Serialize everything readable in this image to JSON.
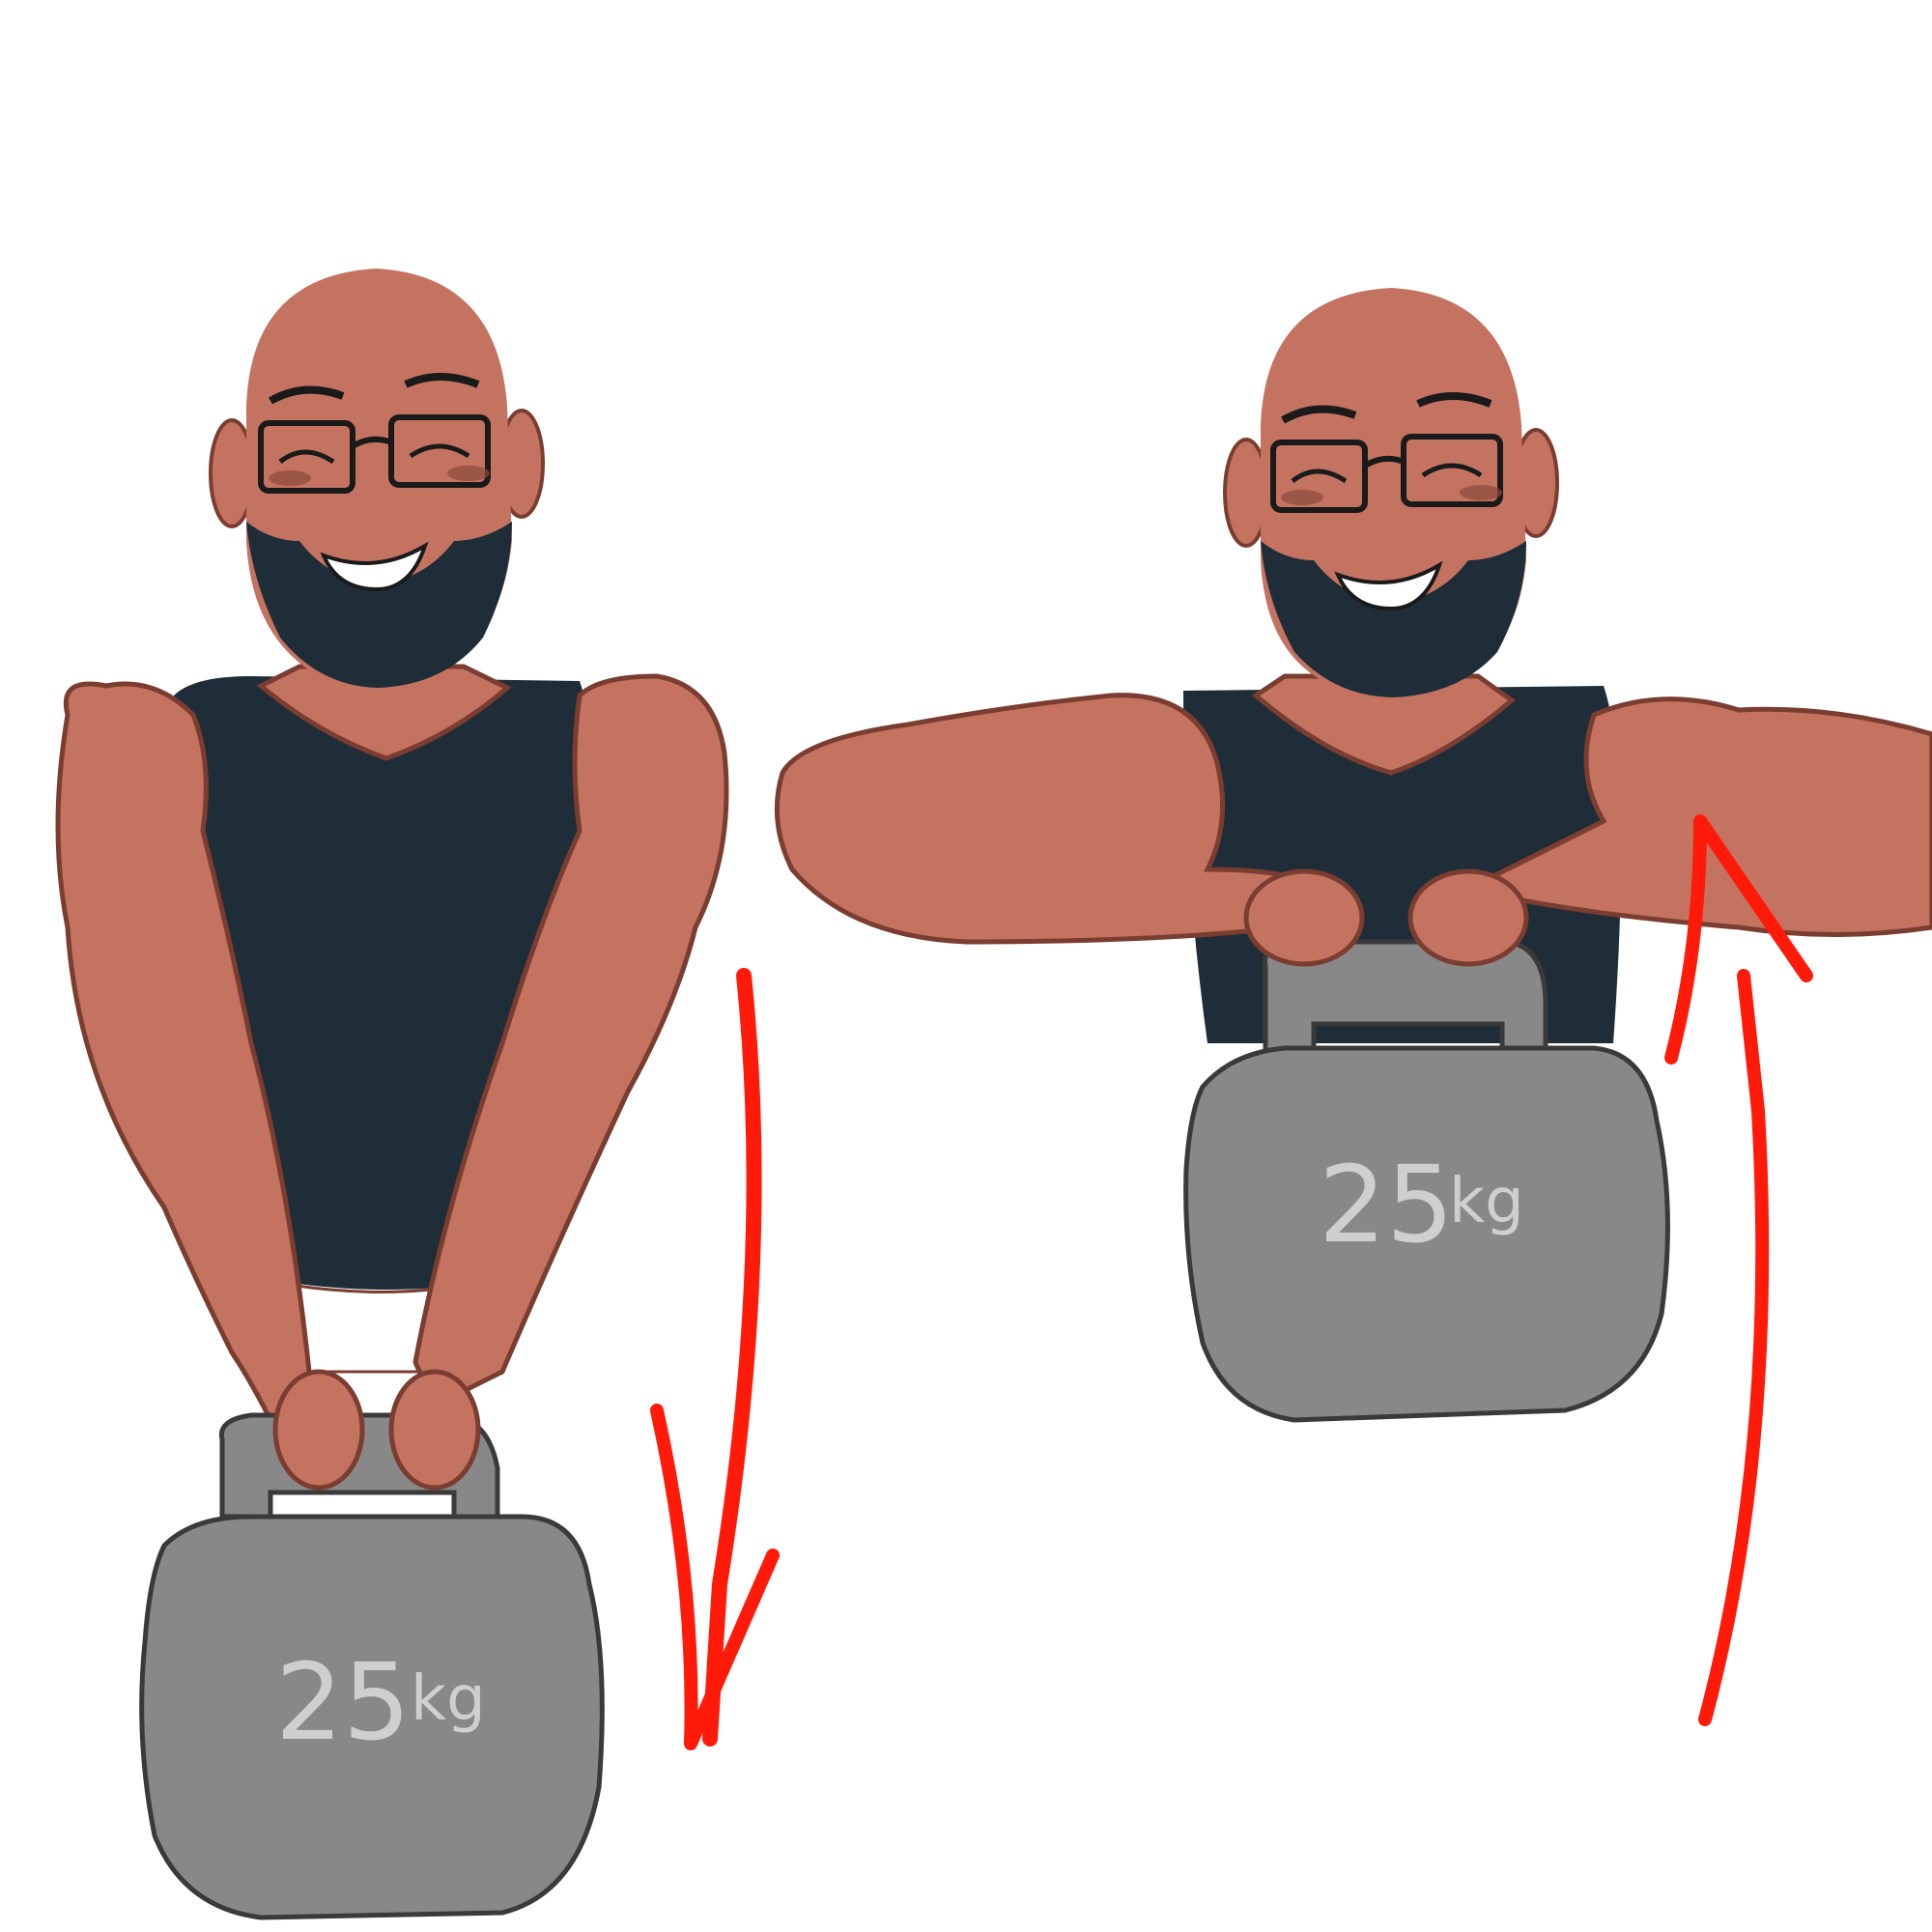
{
  "colors": {
    "background": "#ffffff",
    "skin": "#c47360",
    "skin_outline": "#7a3d30",
    "beard_shirt": "#1f2d38",
    "kettlebell": "#888888",
    "kettlebell_outline": "#3a3a3a",
    "label": "#cfcfcf",
    "arrow": "#ff1a0a"
  },
  "figures": [
    {
      "pose": "arms-down",
      "kettlebell": {
        "weight": "25",
        "unit": "kg"
      },
      "arrow": "down-arrow-icon"
    },
    {
      "pose": "arms-up",
      "kettlebell": {
        "weight": "25",
        "unit": "kg"
      },
      "arrow": "up-arrow-icon"
    }
  ]
}
